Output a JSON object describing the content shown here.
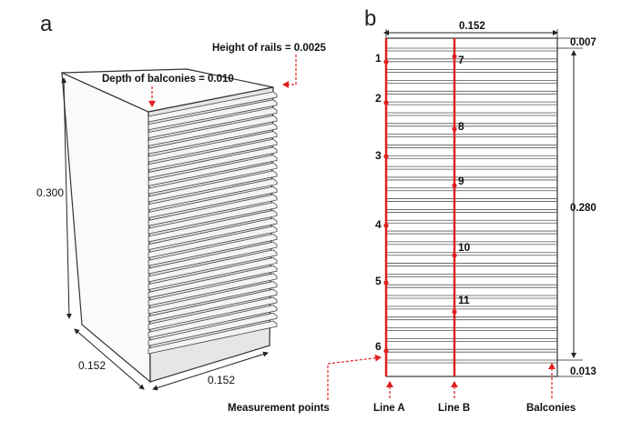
{
  "panel_a": {
    "letter": "a",
    "height_label": "0.300",
    "depth_label": "0.152",
    "width_label": "0.152",
    "rails_annotation": "Height of rails = 0.0025",
    "balconies_annotation": "Depth of balconies = 0.010"
  },
  "panel_b": {
    "letter": "b",
    "width_label": "0.152",
    "top_gap_label": "0.007",
    "span_label": "0.280",
    "bottom_gap_label": "0.013",
    "line_a_points": [
      "1",
      "2",
      "3",
      "4",
      "5",
      "6"
    ],
    "line_b_points": [
      "7",
      "8",
      "9",
      "10",
      "11"
    ],
    "labels": {
      "measurement_points": "Measurement points",
      "line_a": "Line A",
      "line_b": "Line B",
      "balconies": "Balconies"
    }
  },
  "colors": {
    "measurement_line": "#e02020",
    "outline": "#333333",
    "rail": "#555555",
    "face_shade": "#d6d6d6"
  }
}
